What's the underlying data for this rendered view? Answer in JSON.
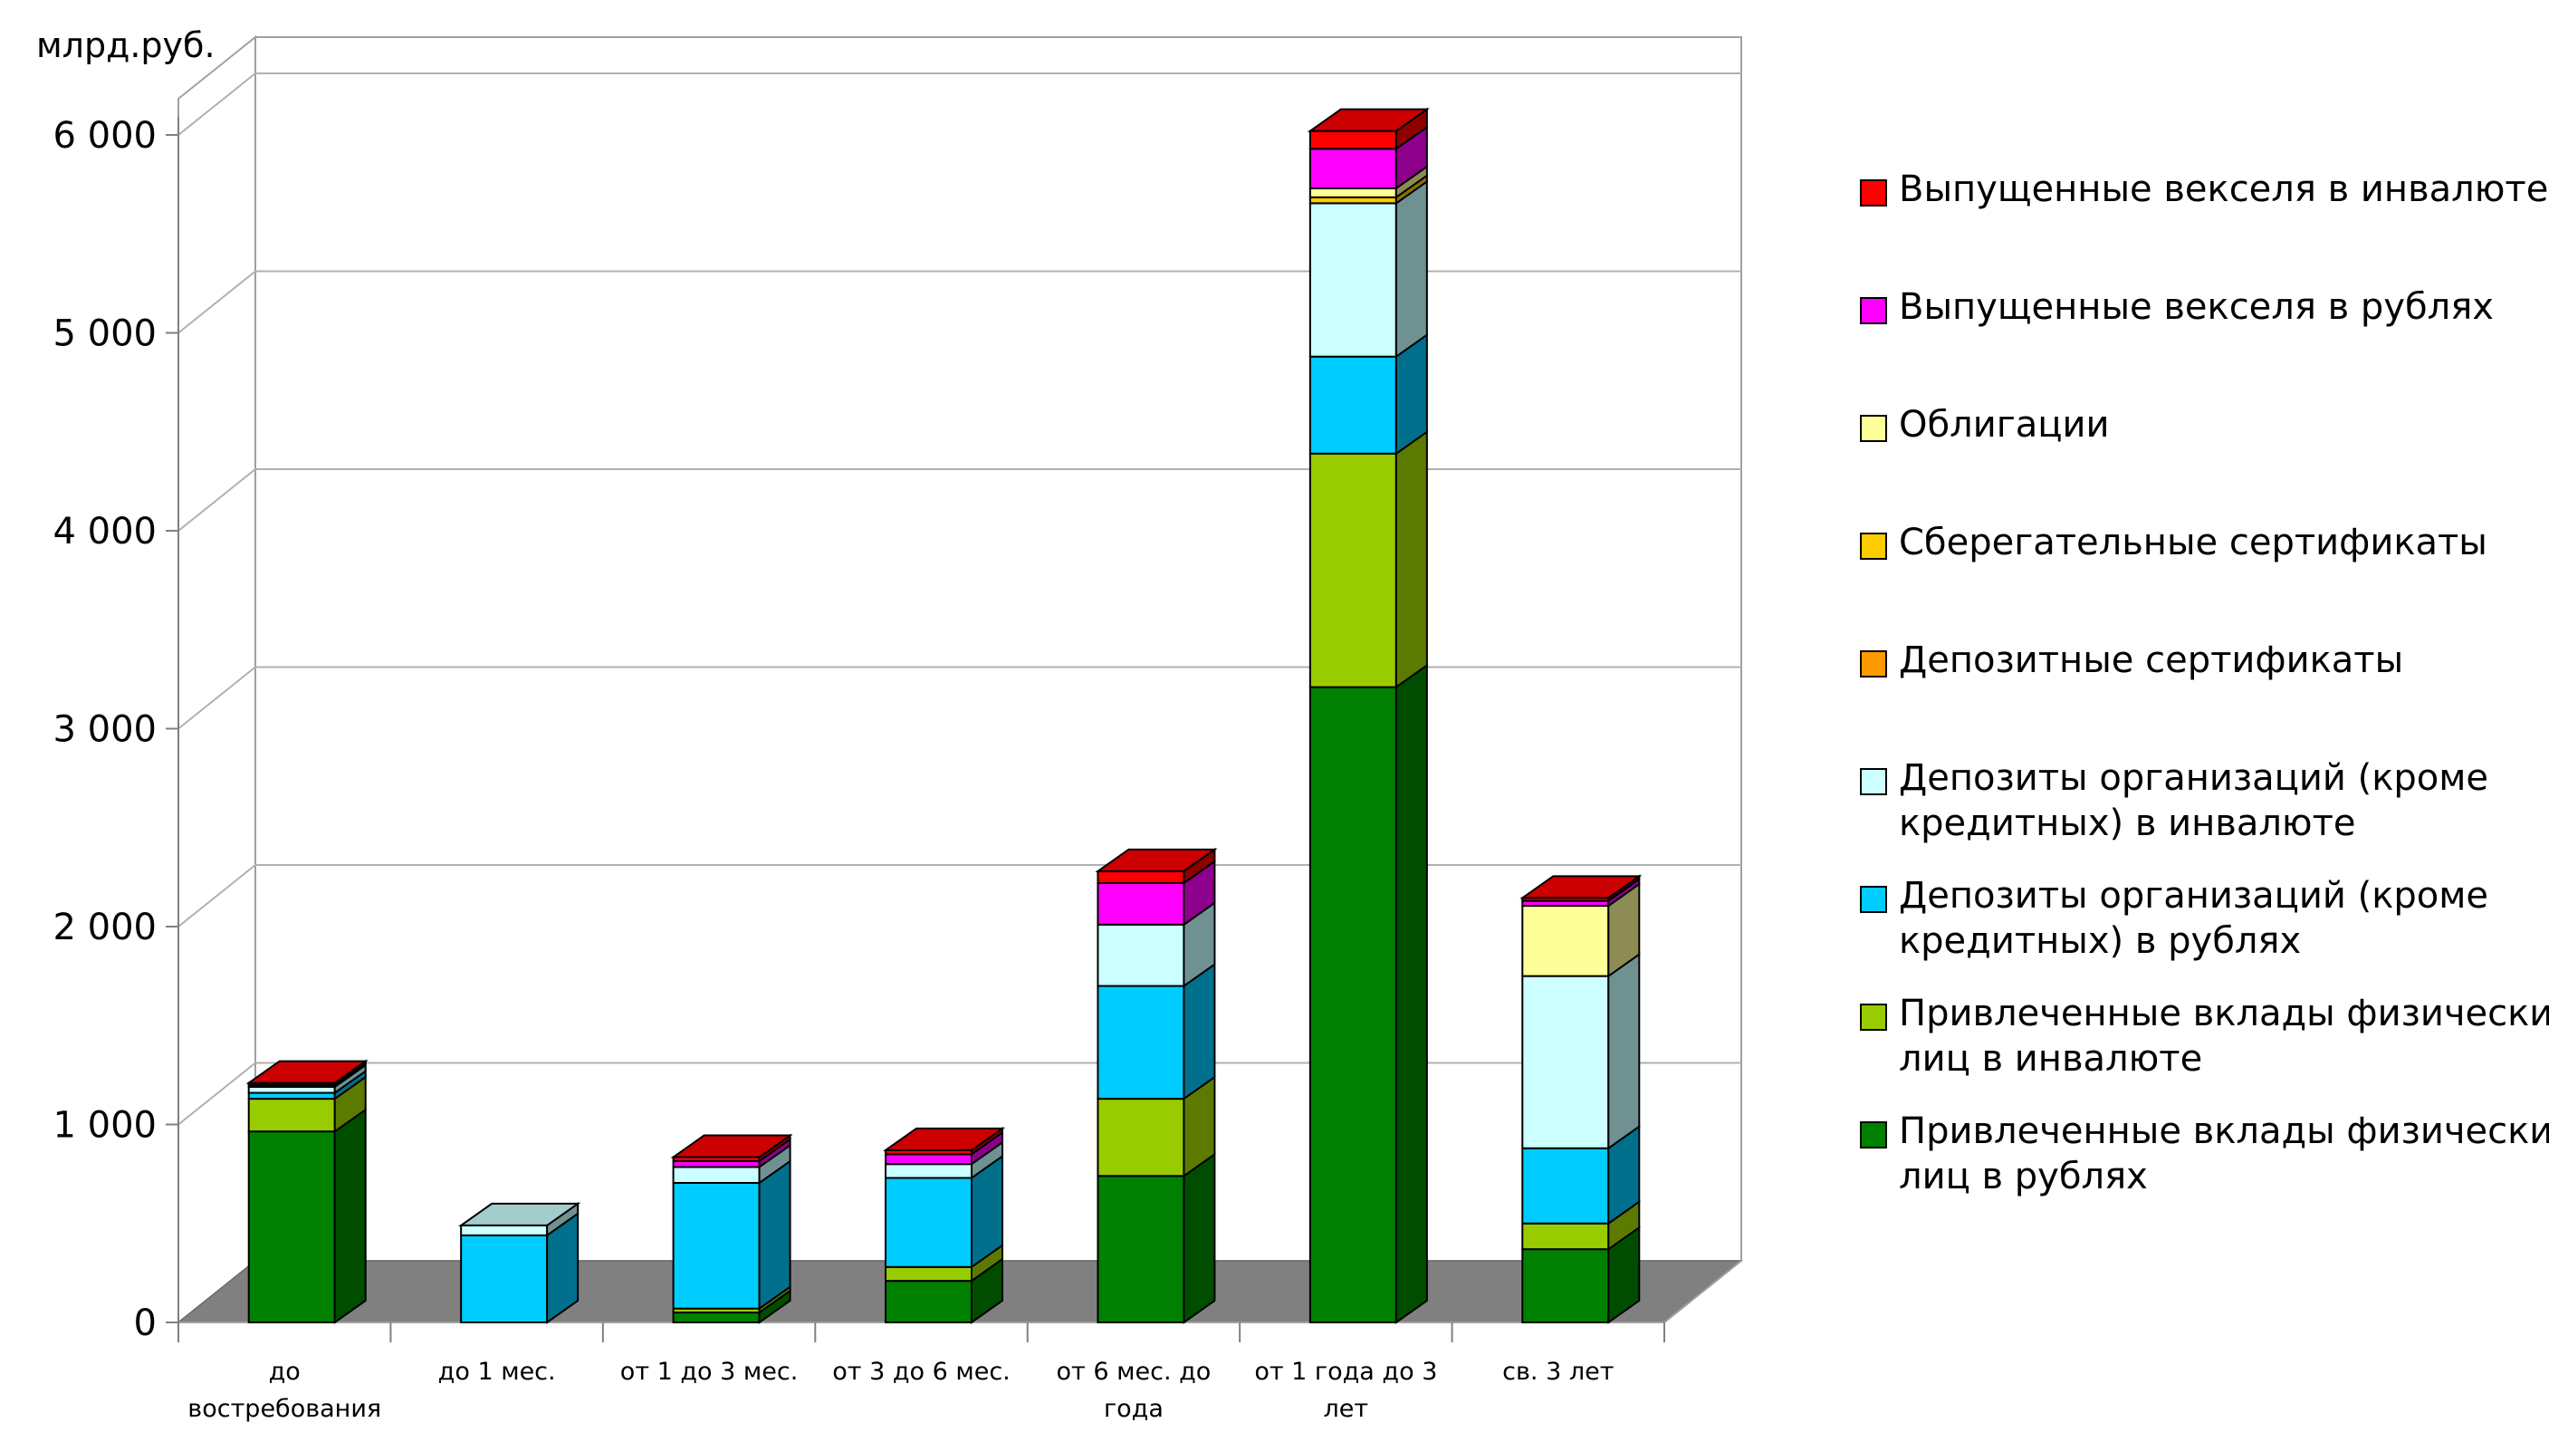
{
  "chart_data": {
    "type": "bar",
    "stacked": true,
    "three_d": true,
    "unit_label": "млрд.руб.",
    "ylim": [
      0,
      6000
    ],
    "yticks": [
      0,
      1000,
      2000,
      3000,
      4000,
      5000,
      6000
    ],
    "ytick_labels": [
      "0",
      "1 000",
      "2 000",
      "3 000",
      "4 000",
      "5 000",
      "6 000"
    ],
    "grid": true,
    "legend_position": "right",
    "categories": [
      [
        "до",
        "востребования"
      ],
      [
        "до 1 мес."
      ],
      [
        "от 1 до 3 мес."
      ],
      [
        "от 3 до 6 мес."
      ],
      [
        "от  6 мес. до",
        "года"
      ],
      [
        "от 1 года  до 3",
        "лет"
      ],
      [
        "св. 3 лет"
      ]
    ],
    "series": [
      {
        "name": "Привлеченные вклады физических лиц в рублях",
        "legend_lines": [
          "Привлеченные вклады физических",
          "лиц в рублях"
        ],
        "color": "#008000",
        "side": "#004d00",
        "top": "#006400",
        "values": [
          965,
          0,
          50,
          210,
          740,
          3210,
          370
        ]
      },
      {
        "name": "Привлеченные вклады физических лиц в инвалюте",
        "legend_lines": [
          "Привлеченные вклады физических",
          "лиц в инвалюте"
        ],
        "color": "#99cc00",
        "side": "#5c7a00",
        "top": "#7aa300",
        "values": [
          165,
          0,
          20,
          70,
          390,
          1180,
          130
        ]
      },
      {
        "name": "Депозиты организаций (кроме кредитных) в рублях",
        "legend_lines": [
          "Депозиты организаций (кроме",
          "кредитных) в рублях"
        ],
        "color": "#00ccff",
        "side": "#00708c",
        "top": "#00a3cc",
        "values": [
          30,
          440,
          635,
          450,
          570,
          490,
          380
        ]
      },
      {
        "name": "Депозиты организаций (кроме кредитных) в инвалюте",
        "legend_lines": [
          "Депозиты организаций (кроме",
          "кредитных) в инвалюте"
        ],
        "color": "#ccffff",
        "side": "#6f9191",
        "top": "#a3cccc",
        "values": [
          30,
          50,
          80,
          70,
          310,
          775,
          870
        ]
      },
      {
        "name": "Депозитные сертификаты",
        "legend_lines": [
          "Депозитные сертификаты"
        ],
        "color": "#ff9900",
        "side": "#8c5400",
        "top": "#cc7a00",
        "values": [
          0,
          0,
          0,
          0,
          0,
          0,
          0
        ]
      },
      {
        "name": "Сберегательные сертификаты",
        "legend_lines": [
          "Сберегательные сертификаты"
        ],
        "color": "#ffcc00",
        "side": "#8c7000",
        "top": "#cca300",
        "values": [
          0,
          0,
          0,
          0,
          0,
          30,
          0
        ]
      },
      {
        "name": "Облигации",
        "legend_lines": [
          "Облигации"
        ],
        "color": "#ffff99",
        "side": "#8c8c54",
        "top": "#cccc7a",
        "values": [
          0,
          0,
          0,
          0,
          0,
          45,
          355
        ]
      },
      {
        "name": "Выпущенные векселя в рублях",
        "legend_lines": [
          "Выпущенные векселя в рублях"
        ],
        "color": "#ff00ff",
        "side": "#8c008c",
        "top": "#cc00cc",
        "values": [
          10,
          0,
          30,
          50,
          210,
          200,
          25
        ]
      },
      {
        "name": "Выпущенные векселя в инвалюте",
        "legend_lines": [
          "Выпущенные векселя в инвалюте"
        ],
        "color": "#ff0000",
        "side": "#8c0000",
        "top": "#cc0000",
        "values": [
          10,
          0,
          20,
          20,
          60,
          90,
          15
        ]
      }
    ]
  }
}
